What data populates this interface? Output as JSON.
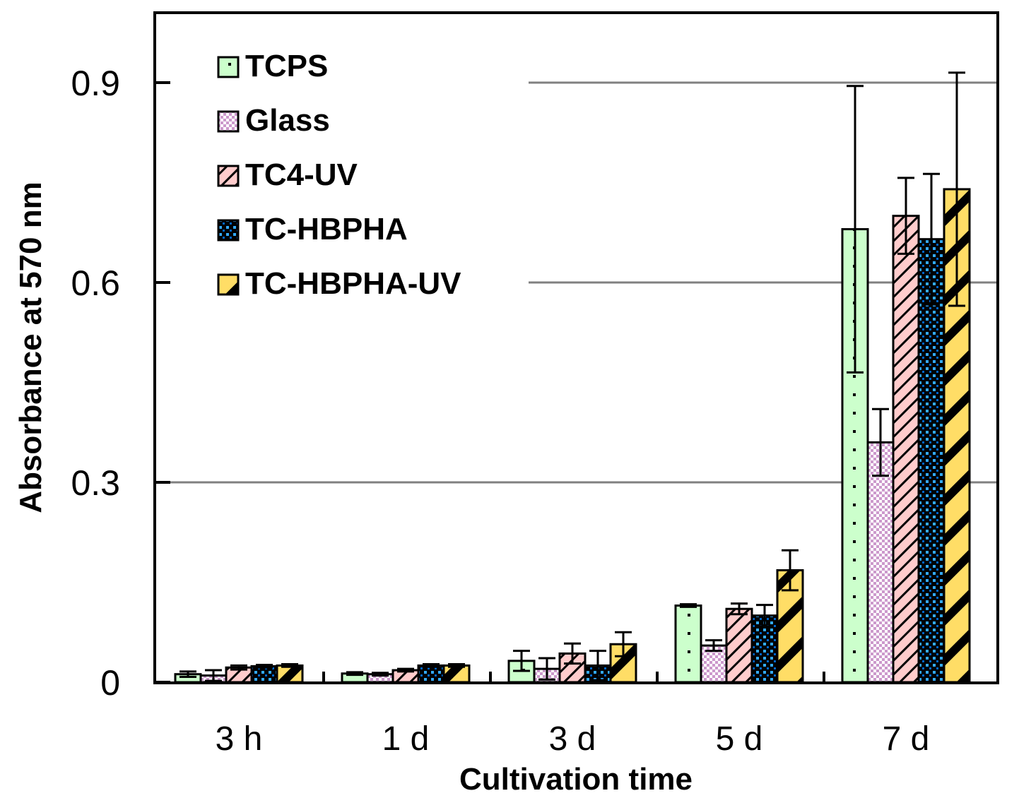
{
  "chart_data": {
    "type": "bar",
    "title": "",
    "xlabel": "Cultivation time",
    "ylabel": "Absorbance at 570 nm",
    "ylim": [
      0,
      1.0
    ],
    "yticks": [
      0,
      0.3,
      0.6,
      0.9
    ],
    "ytick_labels": [
      "0",
      "0.3",
      "0.6",
      "0.9"
    ],
    "grid": true,
    "legend_position": "top-left",
    "categories": [
      "3 h",
      "1 d",
      "3 d",
      "5 d",
      "7 d"
    ],
    "series": [
      {
        "name": "TCPS",
        "color": "#ccffcc",
        "pattern": "dots",
        "values": [
          0.012,
          0.013,
          0.032,
          0.115,
          0.68
        ],
        "errors": [
          0.004,
          0.002,
          0.015,
          0.002,
          0.215
        ]
      },
      {
        "name": "Glass",
        "color": "#cc99cc",
        "pattern": "checker",
        "values": [
          0.01,
          0.012,
          0.02,
          0.055,
          0.36
        ],
        "errors": [
          0.008,
          0.002,
          0.016,
          0.008,
          0.05
        ]
      },
      {
        "name": "TC4-UV",
        "color": "#ffcccc",
        "pattern": "diagonal",
        "values": [
          0.022,
          0.018,
          0.043,
          0.11,
          0.7
        ],
        "errors": [
          0.003,
          0.002,
          0.015,
          0.008,
          0.057
        ]
      },
      {
        "name": "TC-HBPHA",
        "color": "#0066cc",
        "pattern": "grid",
        "values": [
          0.024,
          0.025,
          0.025,
          0.1,
          0.665
        ],
        "errors": [
          0.002,
          0.002,
          0.022,
          0.016,
          0.098
        ]
      },
      {
        "name": "TC-HBPHA-UV",
        "color": "#ffdd66",
        "pattern": "stripes",
        "values": [
          0.025,
          0.025,
          0.057,
          0.168,
          0.74
        ],
        "errors": [
          0.002,
          0.002,
          0.018,
          0.03,
          0.175
        ]
      }
    ]
  }
}
